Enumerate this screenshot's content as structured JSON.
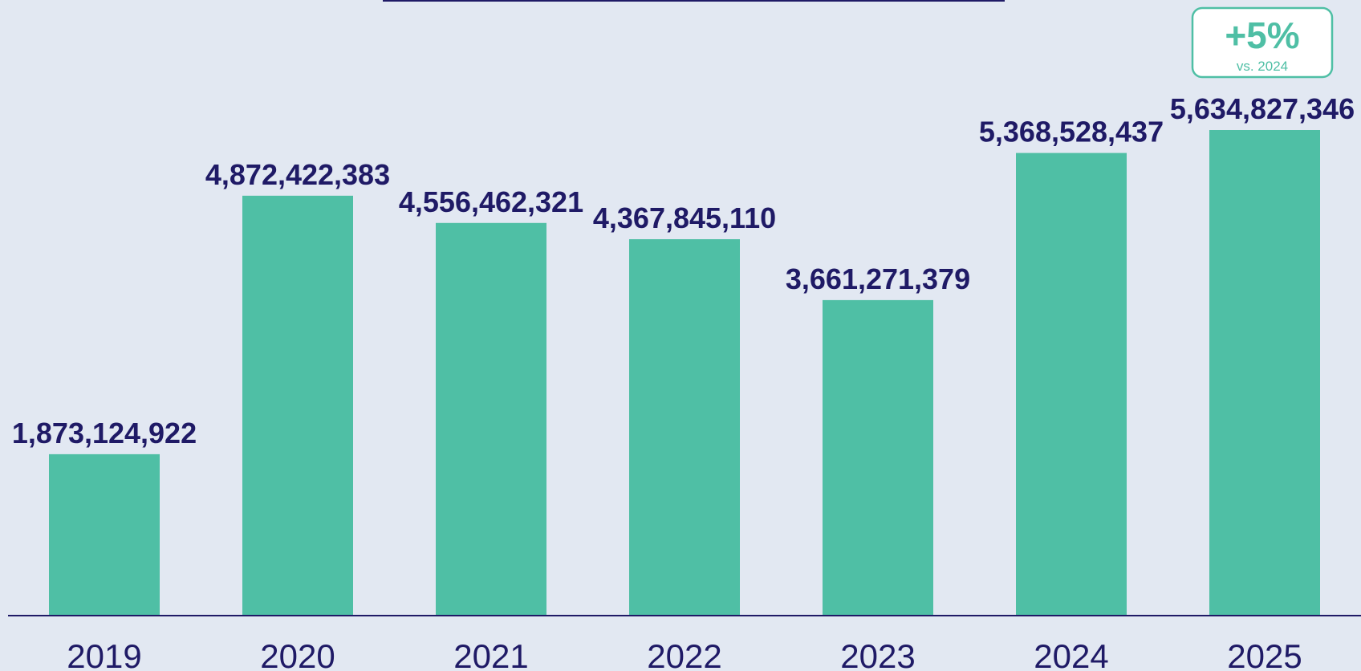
{
  "chart_data": {
    "type": "bar",
    "title": "",
    "xlabel": "",
    "ylabel": "",
    "categories": [
      "2019",
      "2020",
      "2021",
      "2022",
      "2023",
      "2024",
      "2025"
    ],
    "values": [
      1873124922,
      4872422383,
      4556462321,
      4367845110,
      3661271379,
      5368528437,
      5634827346
    ],
    "value_labels": [
      "1,873,124,922",
      "4,872,422,383",
      "4,556,462,321",
      "4,367,845,110",
      "3,661,271,379",
      "5,368,528,437",
      "5,634,827,346"
    ],
    "ylim": [
      0,
      5634827346
    ],
    "grid": false,
    "legend": "none",
    "annotation": {
      "category": "2025",
      "main": "+5%",
      "sub": "vs. 2024"
    }
  },
  "colors": {
    "background": "#e2e8f2",
    "bar": "#4fbfa5",
    "text": "#1f1a66",
    "axis": "#1f1a66",
    "badge_border": "#4fbfa5",
    "badge_fill": "#ffffff",
    "badge_text": "#4fbfa5"
  }
}
